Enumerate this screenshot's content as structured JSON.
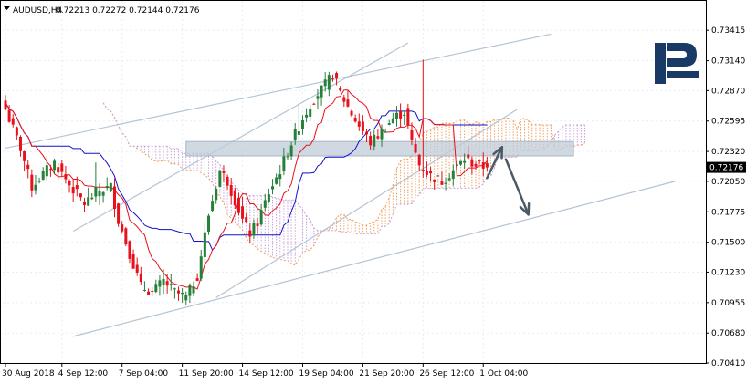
{
  "header": {
    "symbol": "AUDUSD,H4",
    "ohlc": "0.72213 0.72272 0.72144 0.72176"
  },
  "colors": {
    "bull": "#26803a",
    "bear": "#e8101a",
    "tenkan": "#e8101a",
    "kijun": "#1212c8",
    "cloud_bull": "#f0a060",
    "cloud_bear": "#c8a0d8",
    "channel": "#b4c4d4",
    "zone": "#c0ccd8",
    "arrow": "#4a5a66",
    "grid": "#e8eef2",
    "price_badge": "#000000"
  },
  "logo": {
    "icon": "roboforex-r-logo-icon",
    "color": "#1a3a66"
  },
  "chart_data": {
    "type": "candlestick",
    "symbol": "AUDUSD",
    "timeframe": "H4",
    "last_price": "0.72176",
    "ylim": [
      0.7041,
      0.7368
    ],
    "y_ticks": [
      "0.73415",
      "0.73140",
      "0.72870",
      "0.72595",
      "0.72320",
      "0.72050",
      "0.71775",
      "0.71500",
      "0.71230",
      "0.70955",
      "0.70680",
      "0.70410"
    ],
    "x_ticks": [
      "30 Aug 2018",
      "4 Sep 12:00",
      "7 Sep 04:00",
      "11 Sep 20:00",
      "14 Sep 12:00",
      "19 Sep 04:00",
      "21 Sep 20:00",
      "26 Sep 12:00",
      "1 Oct 04:00"
    ],
    "x_tick_bars": [
      0,
      15,
      31,
      47,
      63,
      79,
      95,
      111,
      127
    ],
    "bar_count": 129,
    "future_bars": 26,
    "anchors": [
      [
        0,
        0.727
      ],
      [
        4,
        0.7235
      ],
      [
        7,
        0.72
      ],
      [
        10,
        0.7212
      ],
      [
        13,
        0.7222
      ],
      [
        17,
        0.7202
      ],
      [
        21,
        0.7185
      ],
      [
        24,
        0.7195
      ],
      [
        28,
        0.72
      ],
      [
        30,
        0.717
      ],
      [
        33,
        0.714
      ],
      [
        36,
        0.711
      ],
      [
        39,
        0.7105
      ],
      [
        42,
        0.7115
      ],
      [
        45,
        0.7105
      ],
      [
        48,
        0.71
      ],
      [
        51,
        0.712
      ],
      [
        54,
        0.7175
      ],
      [
        57,
        0.7215
      ],
      [
        59,
        0.7205
      ],
      [
        61,
        0.7188
      ],
      [
        63,
        0.717
      ],
      [
        65,
        0.7158
      ],
      [
        67,
        0.7168
      ],
      [
        70,
        0.7195
      ],
      [
        73,
        0.7215
      ],
      [
        76,
        0.724
      ],
      [
        79,
        0.7262
      ],
      [
        82,
        0.728
      ],
      [
        85,
        0.7292
      ],
      [
        87,
        0.7302
      ],
      [
        89,
        0.7285
      ],
      [
        92,
        0.7266
      ],
      [
        95,
        0.725
      ],
      [
        97,
        0.724
      ],
      [
        100,
        0.725
      ],
      [
        103,
        0.7262
      ],
      [
        106,
        0.7268
      ],
      [
        108,
        0.724
      ],
      [
        110,
        0.722
      ],
      [
        113,
        0.721
      ],
      [
        116,
        0.7205
      ],
      [
        119,
        0.7215
      ],
      [
        122,
        0.7225
      ],
      [
        125,
        0.722
      ],
      [
        128,
        0.72176
      ]
    ],
    "spikes": [
      {
        "bar": 111,
        "high": 0.7315
      },
      {
        "bar": 24,
        "high": 0.7222
      },
      {
        "bar": 78,
        "high": 0.7275
      }
    ],
    "tenkan_period": 9,
    "kijun_period": 26,
    "senkou_b_period": 52,
    "channel_lines": [
      {
        "from": [
          0,
          0.7235
        ],
        "to": [
          145,
          0.7338
        ]
      },
      {
        "from": [
          18,
          0.716
        ],
        "to": [
          107,
          0.733
        ]
      },
      {
        "from": [
          56,
          0.71
        ],
        "to": [
          136,
          0.727
        ]
      },
      {
        "from": [
          18,
          0.7065
        ],
        "to": [
          178,
          0.7205
        ]
      }
    ],
    "resistance_zone": {
      "from_bar": 48,
      "to_bar": 151,
      "low": 0.7228,
      "high": 0.7241
    },
    "forecast_arrows": [
      {
        "from": [
          128,
          0.7208
        ],
        "to": [
          132,
          0.7236
        ]
      },
      {
        "from": [
          133,
          0.7225
        ],
        "to": [
          139,
          0.7175
        ]
      }
    ]
  }
}
